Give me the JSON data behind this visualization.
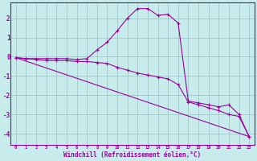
{
  "title": "",
  "xlabel": "Windchill (Refroidissement éolien,°C)",
  "bg_color": "#c8ecec",
  "grid_color": "#a0c8c8",
  "line_color": "#990099",
  "xlim": [
    -0.5,
    23.5
  ],
  "ylim": [
    -4.6,
    2.8
  ],
  "xticks": [
    0,
    1,
    2,
    3,
    4,
    5,
    6,
    7,
    8,
    9,
    10,
    11,
    12,
    13,
    14,
    15,
    16,
    17,
    18,
    19,
    20,
    21,
    22,
    23
  ],
  "yticks": [
    -4,
    -3,
    -2,
    -1,
    0,
    1,
    2
  ],
  "curve1_x": [
    0,
    1,
    2,
    3,
    4,
    5,
    6,
    7,
    8,
    9,
    10,
    11,
    12,
    13,
    14,
    15,
    16,
    17,
    18,
    19,
    20,
    21,
    22,
    23
  ],
  "curve1_y": [
    -0.05,
    -0.1,
    -0.1,
    -0.1,
    -0.1,
    -0.1,
    -0.15,
    -0.1,
    0.35,
    0.75,
    1.35,
    2.0,
    2.5,
    2.5,
    2.15,
    2.2,
    1.75,
    -2.3,
    -2.4,
    -2.5,
    -2.6,
    -2.5,
    -3.0,
    -4.15
  ],
  "curve2_x": [
    0,
    1,
    2,
    3,
    4,
    5,
    6,
    7,
    8,
    9,
    10,
    11,
    12,
    13,
    14,
    15,
    16,
    17,
    18,
    19,
    20,
    21,
    22,
    23
  ],
  "curve2_y": [
    -0.05,
    -0.1,
    -0.15,
    -0.2,
    -0.2,
    -0.2,
    -0.25,
    -0.25,
    -0.3,
    -0.35,
    -0.55,
    -0.7,
    -0.85,
    -0.95,
    -1.05,
    -1.15,
    -1.45,
    -2.35,
    -2.5,
    -2.65,
    -2.8,
    -3.0,
    -3.1,
    -4.15
  ],
  "curve3_x": [
    0,
    23
  ],
  "curve3_y": [
    -0.05,
    -4.15
  ]
}
